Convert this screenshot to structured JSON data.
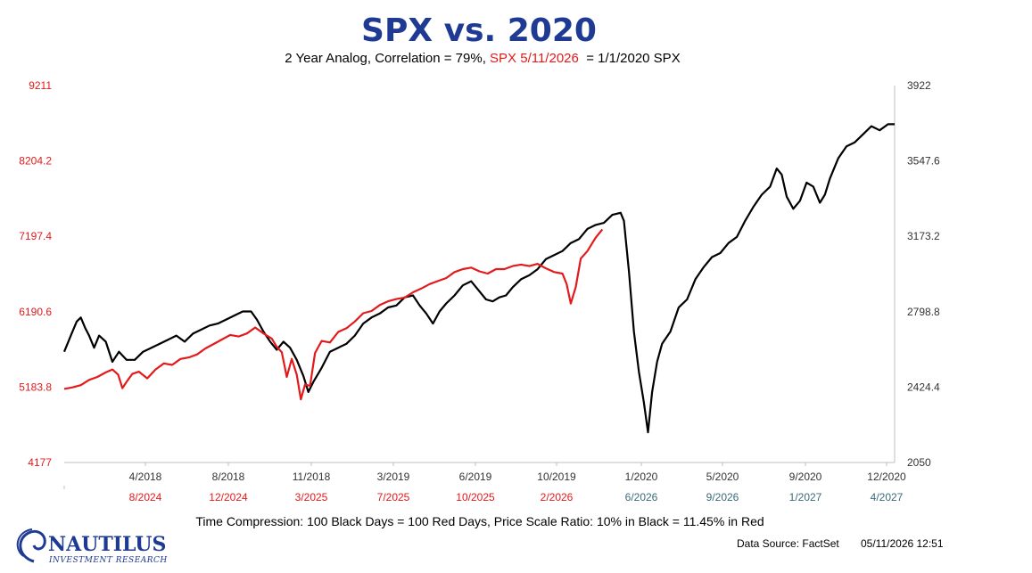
{
  "header": {
    "title": "SPX vs. 2020",
    "subtitle_a": "2 Year Analog, Correlation = 79%, ",
    "subtitle_red": "SPX 5/11/2026",
    "subtitle_b": "  = 1/1/2020 SPX"
  },
  "footer": {
    "note": "Time Compression: 100 Black Days = 100 Red Days,  Price Scale Ratio: 10% in Black = 11.45% in Red",
    "source": "Data Source: FactSet",
    "timestamp": "05/11/2026 12:51"
  },
  "logo": {
    "name": "NAUTILUS",
    "tagline": "INVESTMENT RESEARCH"
  },
  "colors": {
    "black_series": "#000000",
    "red_series": "#e31a1c",
    "title": "#1f3a93"
  },
  "chart_data": {
    "type": "line",
    "left_axis": {
      "ticks": [
        "9211",
        "8204.2",
        "7197.4",
        "6190.6",
        "5183.8",
        "4177"
      ],
      "range": [
        4177,
        9211
      ],
      "color": "#e31a1c"
    },
    "right_axis": {
      "ticks": [
        "3922",
        "3547.6",
        "3173.2",
        "2798.8",
        "2424.4",
        "2050"
      ],
      "range": [
        2050,
        3922
      ]
    },
    "x_ticks_top": [
      "4/2018",
      "8/2018",
      "11/2018",
      "3/2019",
      "6/2019",
      "10/2019",
      "1/2020",
      "5/2020",
      "9/2020",
      "12/2020"
    ],
    "x_ticks_bottom": [
      {
        "label": "8/2024",
        "color": "red"
      },
      {
        "label": "12/2024",
        "color": "red"
      },
      {
        "label": "3/2025",
        "color": "red"
      },
      {
        "label": "7/2025",
        "color": "red"
      },
      {
        "label": "10/2025",
        "color": "red"
      },
      {
        "label": "2/2026",
        "color": "red"
      },
      {
        "label": "6/2026",
        "color": "teal"
      },
      {
        "label": "9/2026",
        "color": "teal"
      },
      {
        "label": "1/2027",
        "color": "teal"
      },
      {
        "label": "4/2027",
        "color": "teal"
      }
    ],
    "series": [
      {
        "color": "#000000",
        "axis": "right",
        "points": [
          [
            0.0,
            2600
          ],
          [
            0.008,
            2680
          ],
          [
            0.015,
            2750
          ],
          [
            0.02,
            2770
          ],
          [
            0.025,
            2720
          ],
          [
            0.03,
            2680
          ],
          [
            0.036,
            2620
          ],
          [
            0.042,
            2680
          ],
          [
            0.05,
            2650
          ],
          [
            0.058,
            2550
          ],
          [
            0.066,
            2600
          ],
          [
            0.075,
            2560
          ],
          [
            0.085,
            2560
          ],
          [
            0.095,
            2600
          ],
          [
            0.105,
            2620
          ],
          [
            0.115,
            2640
          ],
          [
            0.125,
            2660
          ],
          [
            0.135,
            2680
          ],
          [
            0.145,
            2650
          ],
          [
            0.155,
            2690
          ],
          [
            0.165,
            2710
          ],
          [
            0.175,
            2730
          ],
          [
            0.185,
            2740
          ],
          [
            0.195,
            2760
          ],
          [
            0.205,
            2780
          ],
          [
            0.215,
            2800
          ],
          [
            0.225,
            2800
          ],
          [
            0.232,
            2760
          ],
          [
            0.24,
            2700
          ],
          [
            0.248,
            2650
          ],
          [
            0.256,
            2610
          ],
          [
            0.264,
            2650
          ],
          [
            0.272,
            2620
          ],
          [
            0.28,
            2560
          ],
          [
            0.288,
            2480
          ],
          [
            0.294,
            2400
          ],
          [
            0.3,
            2450
          ],
          [
            0.31,
            2520
          ],
          [
            0.32,
            2600
          ],
          [
            0.33,
            2620
          ],
          [
            0.34,
            2640
          ],
          [
            0.35,
            2680
          ],
          [
            0.36,
            2740
          ],
          [
            0.37,
            2770
          ],
          [
            0.38,
            2790
          ],
          [
            0.39,
            2820
          ],
          [
            0.4,
            2830
          ],
          [
            0.41,
            2870
          ],
          [
            0.42,
            2880
          ],
          [
            0.428,
            2830
          ],
          [
            0.436,
            2790
          ],
          [
            0.444,
            2740
          ],
          [
            0.452,
            2800
          ],
          [
            0.46,
            2840
          ],
          [
            0.47,
            2880
          ],
          [
            0.48,
            2930
          ],
          [
            0.49,
            2950
          ],
          [
            0.5,
            2900
          ],
          [
            0.508,
            2860
          ],
          [
            0.516,
            2850
          ],
          [
            0.524,
            2870
          ],
          [
            0.532,
            2880
          ],
          [
            0.54,
            2920
          ],
          [
            0.55,
            2960
          ],
          [
            0.56,
            2980
          ],
          [
            0.57,
            3010
          ],
          [
            0.58,
            3060
          ],
          [
            0.59,
            3080
          ],
          [
            0.6,
            3100
          ],
          [
            0.61,
            3140
          ],
          [
            0.62,
            3160
          ],
          [
            0.63,
            3210
          ],
          [
            0.64,
            3230
          ],
          [
            0.65,
            3240
          ],
          [
            0.66,
            3280
          ],
          [
            0.67,
            3290
          ],
          [
            0.674,
            3250
          ],
          [
            0.68,
            3000
          ],
          [
            0.686,
            2700
          ],
          [
            0.692,
            2500
          ],
          [
            0.698,
            2350
          ],
          [
            0.703,
            2200
          ],
          [
            0.708,
            2400
          ],
          [
            0.714,
            2550
          ],
          [
            0.72,
            2640
          ],
          [
            0.73,
            2700
          ],
          [
            0.74,
            2820
          ],
          [
            0.75,
            2860
          ],
          [
            0.76,
            2960
          ],
          [
            0.77,
            3020
          ],
          [
            0.78,
            3070
          ],
          [
            0.79,
            3090
          ],
          [
            0.8,
            3140
          ],
          [
            0.81,
            3170
          ],
          [
            0.82,
            3250
          ],
          [
            0.83,
            3320
          ],
          [
            0.84,
            3380
          ],
          [
            0.85,
            3420
          ],
          [
            0.858,
            3510
          ],
          [
            0.864,
            3480
          ],
          [
            0.87,
            3370
          ],
          [
            0.878,
            3310
          ],
          [
            0.886,
            3350
          ],
          [
            0.894,
            3440
          ],
          [
            0.902,
            3420
          ],
          [
            0.91,
            3340
          ],
          [
            0.916,
            3380
          ],
          [
            0.922,
            3460
          ],
          [
            0.932,
            3560
          ],
          [
            0.942,
            3620
          ],
          [
            0.952,
            3640
          ],
          [
            0.962,
            3680
          ],
          [
            0.972,
            3720
          ],
          [
            0.982,
            3700
          ],
          [
            0.992,
            3730
          ],
          [
            1.0,
            3730
          ]
        ]
      },
      {
        "color": "#e31a1c",
        "axis": "left",
        "points": [
          [
            0.0,
            5160
          ],
          [
            0.01,
            5180
          ],
          [
            0.02,
            5210
          ],
          [
            0.03,
            5280
          ],
          [
            0.04,
            5320
          ],
          [
            0.05,
            5380
          ],
          [
            0.058,
            5420
          ],
          [
            0.065,
            5350
          ],
          [
            0.07,
            5170
          ],
          [
            0.076,
            5270
          ],
          [
            0.082,
            5360
          ],
          [
            0.09,
            5390
          ],
          [
            0.1,
            5300
          ],
          [
            0.11,
            5420
          ],
          [
            0.12,
            5500
          ],
          [
            0.13,
            5480
          ],
          [
            0.14,
            5560
          ],
          [
            0.15,
            5580
          ],
          [
            0.16,
            5620
          ],
          [
            0.17,
            5700
          ],
          [
            0.18,
            5760
          ],
          [
            0.19,
            5820
          ],
          [
            0.2,
            5880
          ],
          [
            0.21,
            5860
          ],
          [
            0.22,
            5900
          ],
          [
            0.23,
            5980
          ],
          [
            0.24,
            5900
          ],
          [
            0.25,
            5830
          ],
          [
            0.256,
            5720
          ],
          [
            0.262,
            5650
          ],
          [
            0.268,
            5320
          ],
          [
            0.274,
            5560
          ],
          [
            0.28,
            5350
          ],
          [
            0.285,
            5020
          ],
          [
            0.29,
            5220
          ],
          [
            0.296,
            5200
          ],
          [
            0.302,
            5640
          ],
          [
            0.31,
            5800
          ],
          [
            0.32,
            5780
          ],
          [
            0.33,
            5920
          ],
          [
            0.34,
            5970
          ],
          [
            0.35,
            6060
          ],
          [
            0.36,
            6170
          ],
          [
            0.37,
            6200
          ],
          [
            0.38,
            6280
          ],
          [
            0.39,
            6330
          ],
          [
            0.4,
            6360
          ],
          [
            0.41,
            6380
          ],
          [
            0.42,
            6450
          ],
          [
            0.43,
            6500
          ],
          [
            0.44,
            6560
          ],
          [
            0.45,
            6600
          ],
          [
            0.46,
            6640
          ],
          [
            0.47,
            6720
          ],
          [
            0.48,
            6760
          ],
          [
            0.49,
            6780
          ],
          [
            0.5,
            6730
          ],
          [
            0.51,
            6700
          ],
          [
            0.52,
            6760
          ],
          [
            0.53,
            6760
          ],
          [
            0.54,
            6800
          ],
          [
            0.55,
            6820
          ],
          [
            0.56,
            6800
          ],
          [
            0.57,
            6830
          ],
          [
            0.58,
            6770
          ],
          [
            0.59,
            6720
          ],
          [
            0.6,
            6700
          ],
          [
            0.605,
            6560
          ],
          [
            0.61,
            6300
          ],
          [
            0.616,
            6520
          ],
          [
            0.622,
            6900
          ],
          [
            0.63,
            7000
          ],
          [
            0.64,
            7180
          ],
          [
            0.648,
            7290
          ]
        ]
      }
    ]
  }
}
